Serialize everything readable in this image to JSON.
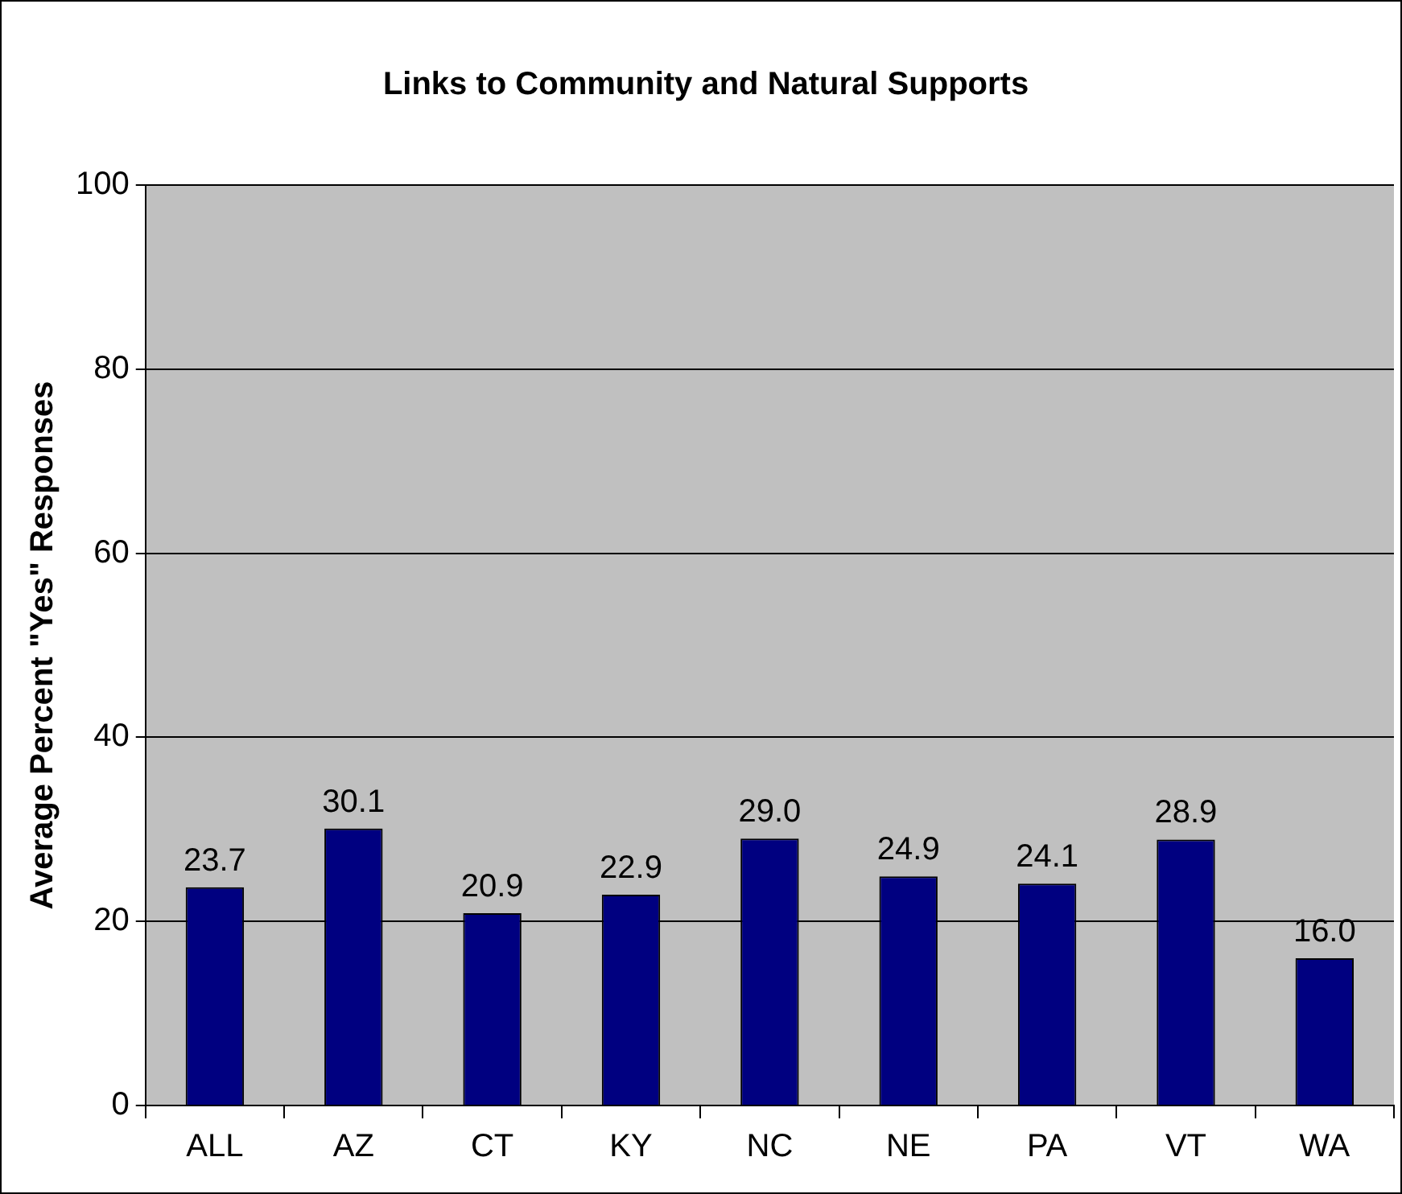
{
  "chart_data": {
    "type": "bar",
    "title": "Links to Community and Natural Supports",
    "ylabel": "Average Percent \"Yes\" Responses",
    "categories": [
      "ALL",
      "AZ",
      "CT",
      "KY",
      "NC",
      "NE",
      "PA",
      "VT",
      "WA"
    ],
    "values": [
      23.7,
      30.1,
      20.9,
      22.9,
      29.0,
      24.9,
      24.1,
      28.9,
      16.0
    ],
    "value_labels": [
      "23.7",
      "30.1",
      "20.9",
      "22.9",
      "29.0",
      "24.9",
      "24.1",
      "28.9",
      "16.0"
    ],
    "color": "#000080",
    "ylim": [
      0,
      100
    ],
    "yticks": [
      0,
      20,
      40,
      60,
      80,
      100
    ],
    "grid": "y",
    "legend": false
  }
}
